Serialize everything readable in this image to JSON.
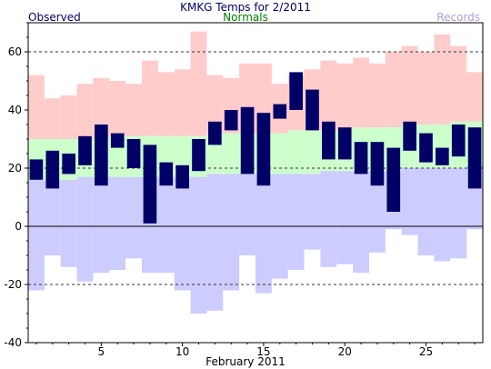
{
  "chart_data": {
    "type": "bar",
    "title": "KMKG Temps for 2/2011",
    "xlabel": "February 2011",
    "ylabel": "",
    "legend": {
      "observed": "Observed",
      "normals": "Normals",
      "records": "Records",
      "placement": "top"
    },
    "colors": {
      "observed": "#000066",
      "normals_text": "#008000",
      "records_text": "#b19cd9",
      "title_text": "#000066",
      "record_high_band": "#ffcccc",
      "normal_band": "#ccffcc",
      "record_low_band": "#ccccff"
    },
    "ylim": [
      -40,
      70
    ],
    "yticks": [
      -40,
      -20,
      0,
      20,
      40,
      60
    ],
    "xlim": [
      0.5,
      28.5
    ],
    "xticks": [
      5,
      10,
      15,
      20,
      25
    ],
    "grid": "dashed horizontal at 60, 20, -20",
    "days": [
      1,
      2,
      3,
      4,
      5,
      6,
      7,
      8,
      9,
      10,
      11,
      12,
      13,
      14,
      15,
      16,
      17,
      18,
      19,
      20,
      21,
      22,
      23,
      24,
      25,
      26,
      27,
      28
    ],
    "observed_high": [
      23,
      26,
      25,
      31,
      35,
      32,
      30,
      28,
      22,
      21,
      30,
      36,
      40,
      41,
      39,
      42,
      53,
      47,
      36,
      34,
      29,
      29,
      27,
      36,
      32,
      27,
      35,
      34
    ],
    "observed_low": [
      16,
      13,
      18,
      21,
      14,
      27,
      20,
      1,
      14,
      13,
      19,
      28,
      33,
      18,
      14,
      37,
      40,
      33,
      23,
      23,
      18,
      14,
      5,
      26,
      22,
      21,
      24,
      13
    ],
    "normal_high": [
      30,
      30,
      30,
      30,
      30,
      31,
      31,
      31,
      31,
      31,
      31,
      32,
      32,
      32,
      32,
      32,
      33,
      33,
      33,
      33,
      34,
      34,
      34,
      35,
      35,
      35,
      36,
      36
    ],
    "normal_low": [
      16,
      16,
      16,
      17,
      17,
      17,
      17,
      17,
      17,
      17,
      17,
      18,
      18,
      18,
      18,
      18,
      18,
      18,
      19,
      19,
      19,
      19,
      19,
      20,
      20,
      20,
      20,
      21
    ],
    "record_high": [
      52,
      44,
      45,
      49,
      51,
      50,
      49,
      57,
      53,
      54,
      67,
      52,
      51,
      56,
      56,
      49,
      52,
      54,
      57,
      56,
      58,
      56,
      60,
      62,
      60,
      66,
      62,
      53
    ],
    "record_low": [
      -22,
      -10,
      -14,
      -19,
      -16,
      -15,
      -11,
      -16,
      -16,
      -22,
      -30,
      -29,
      -22,
      -10,
      -23,
      -18,
      -15,
      -8,
      -14,
      -13,
      -16,
      -9,
      -1,
      -3,
      -10,
      -12,
      -11,
      -1
    ]
  }
}
